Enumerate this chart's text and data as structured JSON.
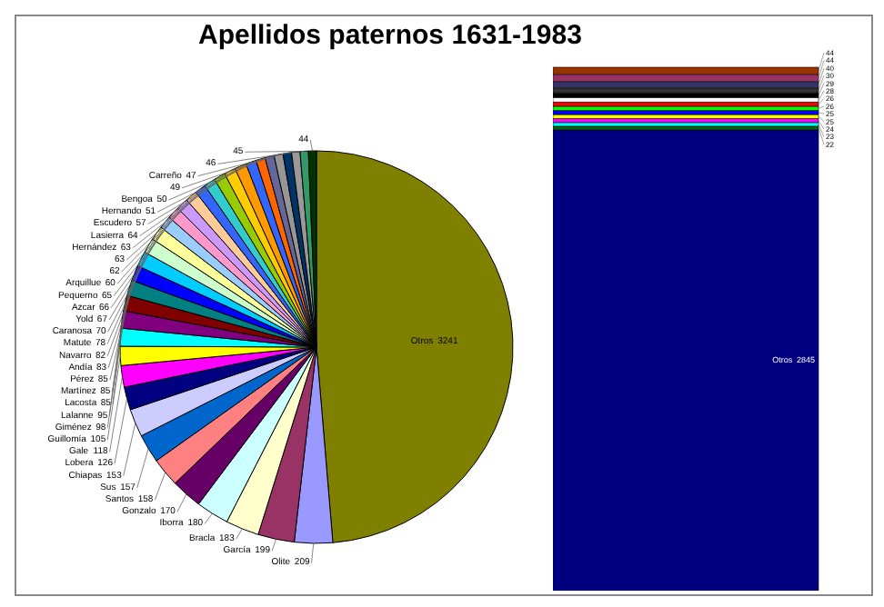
{
  "chart_data": [
    {
      "type": "pie",
      "title": "Apellidos paternos 1631-1983",
      "data_labels": true,
      "categories": [
        "Otros",
        "Olite",
        "García",
        "Bracla",
        "Iborra",
        "Gonzalo",
        "Santos",
        "Sus",
        "Chiapas",
        "Lobera",
        "Gale",
        "Guillomía",
        "Giménez",
        "Lalanne",
        "Lacosta",
        "Martínez",
        "Pérez",
        "Andía",
        "Navarro",
        "Matute",
        "Caranosa",
        "Yold",
        "Azcar",
        "Pequerno",
        "Arquillue",
        null,
        null,
        "Hernández",
        "Lasierra",
        "Escudero",
        "Hernando",
        "Bengoa",
        null,
        "Carreño",
        null,
        null,
        null
      ],
      "values": [
        3241,
        209,
        199,
        183,
        180,
        170,
        158,
        157,
        153,
        126,
        118,
        105,
        98,
        95,
        85,
        85,
        85,
        83,
        82,
        78,
        70,
        67,
        66,
        65,
        60,
        62,
        63,
        63,
        64,
        57,
        51,
        50,
        49,
        47,
        46,
        45,
        44
      ],
      "colors": [
        "#808000",
        "#9999ff",
        "#993366",
        "#ffffcc",
        "#ccffff",
        "#660066",
        "#ff8080",
        "#0066cc",
        "#ccccff",
        "#000080",
        "#ff00ff",
        "#ffff00",
        "#00ffff",
        "#800080",
        "#800000",
        "#008080",
        "#0000ff",
        "#00ccff",
        "#ccffcc",
        "#ffff99",
        "#99ccff",
        "#ff99cc",
        "#cc99ff",
        "#ffcc99",
        "#3366ff",
        "#33cccc",
        "#99cc00",
        "#ffcc00",
        "#ff9900",
        "#3366ff",
        "#ff6600",
        "#666699",
        "#969696",
        "#003366",
        "#999999",
        "#339966",
        "#003300"
      ]
    },
    {
      "type": "bar",
      "stacked": true,
      "data_labels": true,
      "categories": [
        null
      ],
      "series": [
        {
          "name": "Otros",
          "color": "#000080",
          "values": [
            2845
          ]
        },
        {
          "color": "#006600",
          "values": [
            22
          ]
        },
        {
          "color": "#00ffff",
          "values": [
            23
          ]
        },
        {
          "color": "#ff00ff",
          "values": [
            24
          ]
        },
        {
          "color": "#ffff00",
          "values": [
            25
          ]
        },
        {
          "color": "#0000ff",
          "values": [
            25
          ]
        },
        {
          "color": "#00ff00",
          "values": [
            26
          ]
        },
        {
          "color": "#ff0000",
          "values": [
            26
          ]
        },
        {
          "color": "#ffffff",
          "values": [
            28
          ]
        },
        {
          "color": "#000000",
          "values": [
            29
          ]
        },
        {
          "color": "#333333",
          "values": [
            30
          ]
        },
        {
          "color": "#333366",
          "values": [
            40
          ]
        },
        {
          "color": "#993366",
          "values": [
            44
          ]
        },
        {
          "color": "#993300",
          "values": [
            44
          ]
        }
      ]
    }
  ]
}
